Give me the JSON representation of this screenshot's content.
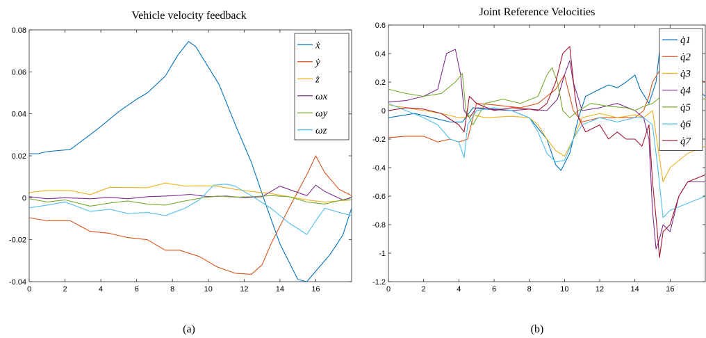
{
  "colors": {
    "c1": "#0072BD",
    "c2": "#D95319",
    "c3": "#EDB120",
    "c4": "#7E2F8E",
    "c5": "#77AC30",
    "c6": "#4DBEEE",
    "c7": "#A2142F"
  },
  "chart_data": [
    {
      "type": "line",
      "title": "Vehicle velocity feedback",
      "caption": "(a)",
      "xlabel": "",
      "ylabel": "",
      "xlim": [
        0,
        18
      ],
      "ylim": [
        -0.04,
        0.08
      ],
      "xticks": [
        0,
        2,
        4,
        6,
        8,
        10,
        12,
        14,
        16
      ],
      "xtick_labels": [
        "0",
        "2",
        "4",
        "6",
        "8",
        "10",
        "12",
        "14",
        "16"
      ],
      "yticks": [
        -0.04,
        -0.02,
        0,
        0.02,
        0.04,
        0.06,
        0.08
      ],
      "ytick_labels": [
        "-0.04",
        "-0.02",
        "0",
        "0.02",
        "0.04",
        "0.06",
        "0.08"
      ],
      "grid": false,
      "legend_position": "top-right",
      "series": [
        {
          "name": "ẋ",
          "color": "c1",
          "x": [
            0,
            0.5,
            1,
            2.3,
            3.4,
            4.0,
            5.0,
            6.0,
            6.6,
            7.6,
            8.3,
            8.9,
            9.3,
            10.6,
            11.5,
            12.4,
            13.2,
            14.0,
            15.0,
            15.5,
            16.0,
            16.8,
            17.5,
            18.0
          ],
          "y": [
            0.021,
            0.021,
            0.022,
            0.023,
            0.03,
            0.034,
            0.041,
            0.047,
            0.05,
            0.058,
            0.068,
            0.0745,
            0.072,
            0.054,
            0.035,
            0.017,
            -0.003,
            -0.022,
            -0.039,
            -0.04,
            -0.035,
            -0.027,
            -0.018,
            -0.005
          ]
        },
        {
          "name": "ẏ",
          "color": "c2",
          "x": [
            0,
            1,
            2,
            2.3,
            3.4,
            4.5,
            5.5,
            6.6,
            7.6,
            8.4,
            9.5,
            10.5,
            11.5,
            12.4,
            13.0,
            13.5,
            14.5,
            15.5,
            16.0,
            16.5,
            17.3,
            18.0
          ],
          "y": [
            -0.0095,
            -0.011,
            -0.011,
            -0.011,
            -0.016,
            -0.017,
            -0.019,
            -0.02,
            -0.025,
            -0.025,
            -0.028,
            -0.033,
            -0.036,
            -0.0365,
            -0.032,
            -0.022,
            -0.005,
            0.011,
            0.02,
            0.012,
            0.004,
            0.001
          ]
        },
        {
          "name": "ż",
          "color": "c3",
          "x": [
            0,
            1,
            2.3,
            3.4,
            4.5,
            6.6,
            7.6,
            8.7,
            9.5,
            10.5,
            11.5,
            12.4,
            13.5,
            14.5,
            15.5,
            16.5,
            18.0
          ],
          "y": [
            0.0025,
            0.0035,
            0.0035,
            0.0015,
            0.005,
            0.0048,
            0.007,
            0.0055,
            0.0057,
            0.0055,
            0.004,
            0.003,
            0.002,
            0.0005,
            -0.001,
            -0.002,
            -0.001
          ]
        },
        {
          "name": "ωx",
          "color": "c4",
          "x": [
            0,
            1,
            2,
            3.4,
            4.5,
            5.5,
            6.6,
            7.6,
            8.4,
            9.0,
            10.0,
            11.0,
            12.0,
            13.0,
            14.0,
            14.5,
            15.5,
            16.0,
            16.5,
            17.5,
            18.0
          ],
          "y": [
            0.0005,
            -0.0005,
            0,
            -0.0005,
            0.0002,
            -0.0005,
            0.0005,
            0.0008,
            0.0012,
            0.0016,
            0.0005,
            0.0008,
            0,
            0.0005,
            0.0055,
            0.004,
            0.001,
            0.006,
            0.003,
            -0.001,
            0
          ]
        },
        {
          "name": "ωy",
          "color": "c5",
          "x": [
            0,
            1,
            2,
            3.4,
            4.5,
            5.5,
            6.6,
            7.6,
            8.7,
            9.5,
            10.5,
            11.5,
            12.4,
            13.5,
            14.5,
            15.5,
            16.5,
            17.5,
            18.0
          ],
          "y": [
            -0.0005,
            -0.002,
            -0.001,
            -0.004,
            -0.0025,
            -0.0015,
            -0.003,
            -0.0035,
            -0.0015,
            -0.0003,
            0.0008,
            0.0003,
            0.0005,
            0.001,
            0.0005,
            -0.002,
            -0.003,
            -0.001,
            -0.001
          ]
        },
        {
          "name": "ωz",
          "color": "c6",
          "x": [
            0,
            1,
            2,
            3.4,
            4.5,
            5.5,
            6.6,
            7.6,
            8.7,
            9.5,
            10.3,
            11.0,
            11.5,
            12.4,
            13.5,
            14.5,
            15.5,
            16.0,
            16.5,
            17.3,
            18.0
          ],
          "y": [
            -0.0048,
            -0.0035,
            -0.002,
            -0.0065,
            -0.0055,
            -0.0075,
            -0.007,
            -0.0085,
            -0.005,
            -0.001,
            0.006,
            0.0065,
            0.0055,
            0.001,
            -0.005,
            -0.012,
            -0.0175,
            -0.011,
            -0.005,
            -0.007,
            -0.0085
          ]
        }
      ]
    },
    {
      "type": "line",
      "title": "Joint Reference Velocities",
      "caption": "(b)",
      "xlabel": "",
      "ylabel": "",
      "xlim": [
        0,
        18
      ],
      "ylim": [
        -1.2,
        0.6
      ],
      "xticks": [
        0,
        2,
        4,
        6,
        8,
        10,
        12,
        14,
        16
      ],
      "xtick_labels": [
        "0",
        "2",
        "4",
        "6",
        "8",
        "10",
        "12",
        "14",
        "16"
      ],
      "yticks": [
        -1.2,
        -1,
        -0.8,
        -0.6,
        -0.4,
        -0.2,
        0,
        0.2,
        0.4,
        0.6
      ],
      "ytick_labels": [
        "-1.2",
        "-1",
        "-0.8",
        "-0.6",
        "-0.4",
        "-0.2",
        "0",
        "0.2",
        "0.4",
        "0.6"
      ],
      "grid": false,
      "legend_position": "top-right",
      "series": [
        {
          "name": "q̇1",
          "color": "c1",
          "x": [
            0,
            1.5,
            2.5,
            3.5,
            4.2,
            4.8,
            5.5,
            7.0,
            8.0,
            9.0,
            9.5,
            9.8,
            10.3,
            10.8,
            11.2,
            12.0,
            12.5,
            13.0,
            13.5,
            14.0,
            14.3,
            14.8,
            15.2,
            15.5,
            16.0,
            16.5,
            17.0,
            18.0
          ],
          "y": [
            -0.05,
            -0.02,
            -0.05,
            -0.08,
            -0.08,
            0.02,
            0.01,
            0.0,
            -0.05,
            -0.2,
            -0.38,
            -0.42,
            -0.3,
            -0.05,
            0.1,
            0.15,
            0.18,
            0.16,
            0.2,
            0.25,
            0.15,
            0.05,
            0.2,
            0.53,
            0.5,
            0.3,
            0.2,
            0.1
          ]
        },
        {
          "name": "q̇2",
          "color": "c2",
          "x": [
            0,
            1.0,
            2.0,
            2.8,
            3.5,
            4.0,
            4.5,
            5.0,
            6.0,
            7.5,
            8.5,
            9.0,
            9.5,
            10.0,
            10.5,
            11.0,
            12.0,
            13.0,
            14.0,
            14.5,
            14.8,
            15.0,
            15.5,
            16.0,
            17.0,
            18.0
          ],
          "y": [
            -0.19,
            -0.18,
            -0.18,
            -0.22,
            -0.2,
            -0.22,
            -0.2,
            0.05,
            0.04,
            0.02,
            0.05,
            0.1,
            0.15,
            0.25,
            0.0,
            -0.08,
            -0.05,
            -0.05,
            -0.05,
            0.0,
            0.1,
            0.2,
            0.3,
            0.35,
            0.25,
            0.2
          ]
        },
        {
          "name": "q̇3",
          "color": "c3",
          "x": [
            0,
            1.0,
            2.0,
            3.0,
            4.0,
            4.3,
            4.8,
            5.5,
            7.0,
            8.0,
            8.5,
            9.0,
            9.5,
            10.0,
            10.5,
            11.0,
            12.0,
            13.0,
            14.0,
            14.5,
            15.0,
            15.3,
            15.6,
            16.0,
            17.0,
            18.0
          ],
          "y": [
            0.04,
            0.02,
            0.0,
            -0.02,
            -0.05,
            -0.05,
            -0.03,
            -0.05,
            -0.04,
            -0.05,
            -0.1,
            -0.2,
            -0.28,
            -0.32,
            -0.2,
            -0.05,
            -0.02,
            -0.05,
            -0.03,
            -0.05,
            0.0,
            -0.25,
            -0.5,
            -0.4,
            -0.3,
            -0.25
          ]
        },
        {
          "name": "q̇4",
          "color": "c4",
          "x": [
            0,
            1.0,
            2.0,
            2.8,
            3.3,
            3.8,
            4.1,
            4.3,
            4.6,
            5.0,
            6.0,
            7.0,
            8.0,
            9.0,
            9.6,
            10.0,
            10.3,
            10.5,
            11.0,
            12.0,
            13.0,
            14.0,
            14.5,
            14.8,
            15.0,
            15.2,
            15.4,
            15.6,
            16.0,
            16.5,
            17.0,
            18.0
          ],
          "y": [
            0.06,
            0.07,
            0.1,
            0.15,
            0.4,
            0.43,
            0.25,
            0.0,
            -0.05,
            0.02,
            0.01,
            0.0,
            0.01,
            0.0,
            0.08,
            0.25,
            0.35,
            0.2,
            0.0,
            0.02,
            0.05,
            0.0,
            -0.05,
            -0.2,
            -0.7,
            -0.97,
            -0.9,
            -0.8,
            -0.85,
            -0.6,
            -0.5,
            -0.5
          ]
        },
        {
          "name": "q̇5",
          "color": "c5",
          "x": [
            0,
            1.0,
            2.0,
            3.0,
            3.8,
            4.2,
            4.4,
            4.8,
            5.5,
            6.5,
            7.5,
            8.5,
            9.0,
            9.3,
            9.6,
            9.9,
            10.3,
            10.8,
            11.5,
            12.5,
            13.5,
            14.0,
            14.5,
            15.0,
            15.5,
            16.0,
            17.0,
            18.0
          ],
          "y": [
            0.15,
            0.12,
            0.1,
            0.12,
            0.2,
            0.26,
            0.0,
            -0.1,
            0.05,
            0.08,
            0.05,
            0.1,
            0.25,
            0.3,
            0.2,
            0.0,
            -0.05,
            0.0,
            0.05,
            0.03,
            0.02,
            0.0,
            0.03,
            0.05,
            0.1,
            0.15,
            0.1,
            0.08
          ]
        },
        {
          "name": "q̇6",
          "color": "c6",
          "x": [
            0,
            1.0,
            2.0,
            2.8,
            3.5,
            4.0,
            4.3,
            4.5,
            5.0,
            6.0,
            7.0,
            8.0,
            8.5,
            9.0,
            9.5,
            10.0,
            10.5,
            11.0,
            12.0,
            13.0,
            14.0,
            14.5,
            15.0,
            15.3,
            15.6,
            16.0,
            17.0,
            18.0
          ],
          "y": [
            0.05,
            0.0,
            -0.05,
            -0.1,
            -0.2,
            -0.22,
            -0.33,
            -0.1,
            0.0,
            0.02,
            0.0,
            -0.05,
            -0.15,
            -0.3,
            -0.36,
            -0.35,
            -0.2,
            -0.1,
            -0.05,
            -0.08,
            -0.05,
            -0.05,
            -0.1,
            -0.4,
            -0.75,
            -0.7,
            -0.65,
            -0.6
          ]
        },
        {
          "name": "q̇7",
          "color": "c7",
          "x": [
            0,
            1.0,
            2.0,
            3.0,
            4.0,
            4.3,
            4.6,
            5.0,
            6.0,
            7.0,
            8.0,
            8.5,
            9.0,
            9.5,
            9.9,
            10.3,
            10.6,
            10.8,
            11.2,
            12.0,
            12.5,
            13.0,
            13.5,
            14.0,
            14.4,
            14.8,
            15.0,
            15.2,
            15.4,
            15.6,
            16.0,
            16.5,
            17.0,
            18.0
          ],
          "y": [
            0.0,
            0.02,
            0.01,
            -0.02,
            -0.1,
            -0.15,
            0.1,
            0.05,
            0.0,
            0.02,
            0.01,
            0.0,
            0.05,
            0.2,
            0.4,
            0.45,
            0.1,
            -0.05,
            -0.15,
            -0.1,
            -0.2,
            -0.15,
            -0.2,
            -0.2,
            -0.25,
            -0.1,
            -0.5,
            -0.75,
            -1.03,
            -0.85,
            -0.8,
            -0.6,
            -0.5,
            -0.45
          ]
        }
      ]
    }
  ]
}
